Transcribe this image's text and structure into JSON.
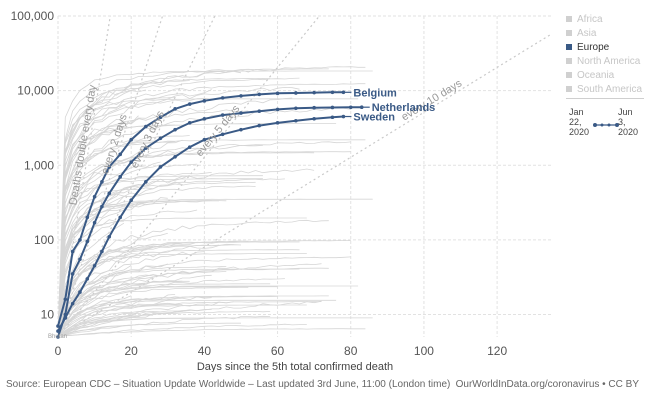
{
  "chart_data": {
    "type": "line",
    "title": "",
    "xlabel": "Days since the 5th total confirmed death",
    "ylabel": "",
    "y_scale": "log",
    "ylim": [
      5,
      100000
    ],
    "xlim": [
      0,
      135
    ],
    "y_ticks": [
      {
        "value": 10,
        "label": "10"
      },
      {
        "value": 100,
        "label": "100"
      },
      {
        "value": 1000,
        "label": "1,000"
      },
      {
        "value": 10000,
        "label": "10,000"
      },
      {
        "value": 100000,
        "label": "100,000"
      }
    ],
    "x_ticks": [
      {
        "value": 0,
        "label": "0"
      },
      {
        "value": 20,
        "label": "20"
      },
      {
        "value": 40,
        "label": "40"
      },
      {
        "value": 60,
        "label": "60"
      },
      {
        "value": 80,
        "label": "80"
      },
      {
        "value": 100,
        "label": "100"
      },
      {
        "value": 120,
        "label": "120"
      }
    ],
    "grid": true,
    "legend_position": "right",
    "start_value": 5,
    "reference_lines": [
      {
        "label": "Deaths double every day",
        "doubling_days": 1
      },
      {
        "label": "every 2 days",
        "doubling_days": 2
      },
      {
        "label": "every 3 days",
        "doubling_days": 3
      },
      {
        "label": "every 5 days",
        "doubling_days": 5
      },
      {
        "label": "every 10 days",
        "doubling_days": 10
      }
    ],
    "series": [
      {
        "name": "Belgium",
        "color": "#3a5a86",
        "x": [
          0,
          2,
          4,
          6,
          8,
          10,
          12,
          14,
          17,
          20,
          24,
          28,
          32,
          36,
          40,
          45,
          50,
          55,
          60,
          65,
          70,
          75,
          78
        ],
        "y": [
          7,
          16,
          70,
          100,
          200,
          380,
          600,
          950,
          1400,
          2200,
          3300,
          4400,
          5700,
          6600,
          7300,
          8000,
          8500,
          8900,
          9200,
          9300,
          9400,
          9500,
          9500
        ]
      },
      {
        "name": "Netherlands",
        "color": "#3a5a86",
        "x": [
          0,
          2,
          4,
          6,
          8,
          10,
          12,
          14,
          17,
          20,
          24,
          28,
          32,
          36,
          40,
          45,
          50,
          55,
          60,
          65,
          70,
          75,
          80,
          83
        ],
        "y": [
          5,
          10,
          35,
          55,
          95,
          170,
          280,
          420,
          700,
          1100,
          1700,
          2300,
          3000,
          3700,
          4200,
          4700,
          5000,
          5300,
          5600,
          5800,
          5900,
          5950,
          5980,
          6000
        ]
      },
      {
        "name": "Sweden",
        "color": "#3a5a86",
        "x": [
          0,
          2,
          4,
          6,
          8,
          10,
          12,
          14,
          17,
          20,
          24,
          28,
          32,
          36,
          40,
          45,
          50,
          55,
          60,
          65,
          70,
          75,
          78
        ],
        "y": [
          6,
          9,
          14,
          20,
          30,
          45,
          70,
          110,
          200,
          340,
          600,
          950,
          1300,
          1750,
          2200,
          2600,
          3000,
          3400,
          3700,
          3950,
          4200,
          4400,
          4500
        ]
      }
    ],
    "background_series_note": "Many other countries drawn as faint gray lines",
    "annotations": [
      "Belgium",
      "Netherlands",
      "Sweden"
    ]
  },
  "legend": {
    "items": [
      {
        "label": "Africa",
        "active": false
      },
      {
        "label": "Asia",
        "active": false
      },
      {
        "label": "Europe",
        "active": true
      },
      {
        "label": "North America",
        "active": false
      },
      {
        "label": "Oceania",
        "active": false
      },
      {
        "label": "South America",
        "active": false
      }
    ]
  },
  "timeline": {
    "start": "Jan 22, 2020",
    "end": "Jun 3, 2020",
    "start_lines": [
      "Jan",
      "22,",
      "2020"
    ],
    "end_lines": [
      "Jun",
      "3,",
      "2020"
    ]
  },
  "footer": {
    "source": "Source: European CDC – Situation Update Worldwide – Last updated 3rd June, 11:00 (London time)",
    "license": "OurWorldInData.org/coronavirus • CC BY"
  },
  "faint_label": "Bhutan"
}
